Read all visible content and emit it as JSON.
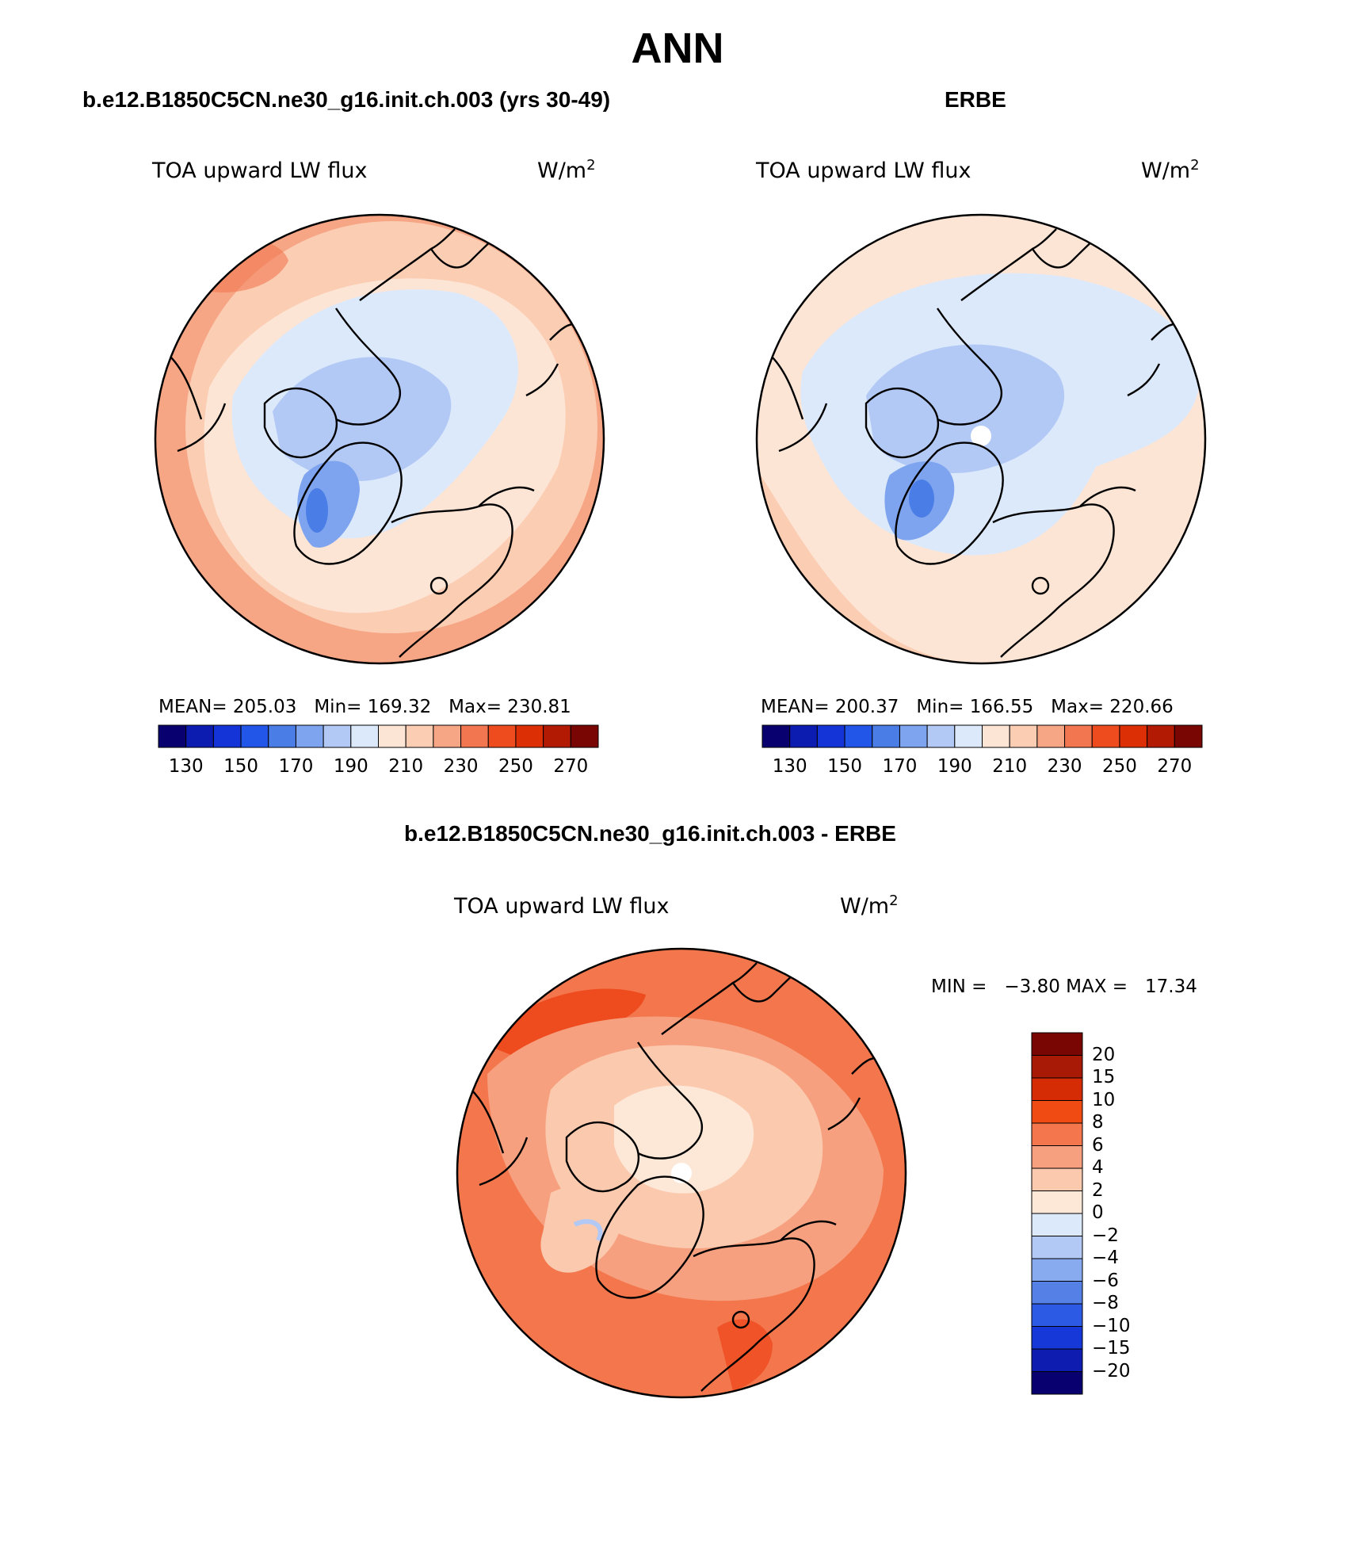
{
  "main_title": "ANN",
  "panels": [
    {
      "title": "b.e12.B1850C5CN.ne30_g16.init.ch.003 (yrs 30-49)",
      "variable": "TOA upward LW flux",
      "units": "W/m",
      "units_exp": "2",
      "stats": {
        "mean_label": "MEAN=",
        "mean": "205.03",
        "min_label": "Min=",
        "min": "169.32",
        "max_label": "Max=",
        "max": "230.81"
      }
    },
    {
      "title": "ERBE",
      "variable": "TOA upward LW flux",
      "units": "W/m",
      "units_exp": "2",
      "stats": {
        "mean_label": "MEAN=",
        "mean": "200.37",
        "min_label": "Min=",
        "min": "166.55",
        "max_label": "Max=",
        "max": "220.66"
      }
    }
  ],
  "diff_panel": {
    "title": "b.e12.B1850C5CN.ne30_g16.init.ch.003 - ERBE",
    "variable": "TOA upward LW flux",
    "units": "W/m",
    "units_exp": "2",
    "min_label": "MIN =",
    "min": "−3.80",
    "max_label": "MAX =",
    "max": "17.34"
  },
  "abs_colorbar": {
    "colors": [
      "#08006e",
      "#0d1cb0",
      "#1434d8",
      "#2256e8",
      "#4b7de6",
      "#7ea4ef",
      "#b3c9f5",
      "#dce9fb",
      "#fde5d6",
      "#fbcdb3",
      "#f6a585",
      "#f27650",
      "#ee4b1e",
      "#dd2f06",
      "#b21a03",
      "#7a0604"
    ],
    "ticks": [
      "130",
      "150",
      "170",
      "190",
      "210",
      "230",
      "250",
      "270"
    ]
  },
  "diff_colorbar": {
    "colors_top_to_bottom": [
      "#7a0604",
      "#a81a05",
      "#d62c06",
      "#f14b14",
      "#f3764c",
      "#f6a07f",
      "#fbc9ae",
      "#fde7d7",
      "#dce9fb",
      "#b3c9f5",
      "#88aaef",
      "#5580e6",
      "#2c5ae4",
      "#1638d8",
      "#0e1cb0",
      "#08006e"
    ],
    "ticks": [
      "20",
      "15",
      "10",
      "8",
      "6",
      "4",
      "2",
      "0",
      "−2",
      "−4",
      "−6",
      "−8",
      "−10",
      "−15",
      "−20"
    ]
  },
  "field_colors": {
    "warm_outer": "#f6a585",
    "warm_mid": "#fbcdb3",
    "warm_light": "#fde5d6",
    "cool_light": "#dce9fb",
    "cool_mid": "#b3c9f5",
    "cool_dark": "#7ea4ef",
    "cool_deep": "#4b7de6",
    "diff_hot": "#ee4b1e",
    "diff_warm": "#f3764c",
    "diff_mid": "#f6a07f",
    "diff_light": "#fde7d7"
  }
}
